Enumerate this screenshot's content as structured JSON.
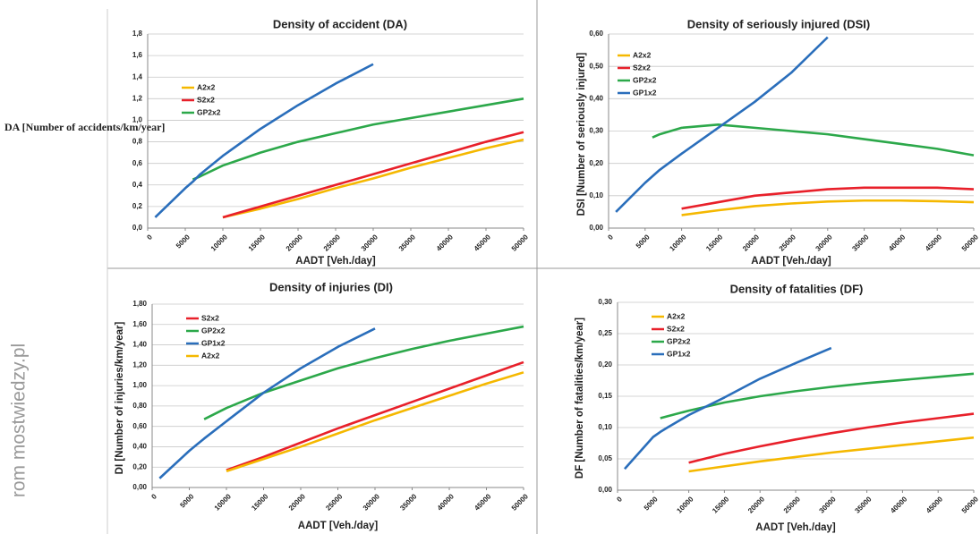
{
  "watermark": "rom mostwiedzy.pl",
  "chart_data": [
    {
      "type": "line",
      "title": "Density of accident (DA)",
      "x_label": "AADT [Veh./day]",
      "y_label": "DA [Number of accidents/km/year]",
      "x": [
        1000,
        5000,
        6000,
        7000,
        10000,
        15000,
        20000,
        25000,
        30000,
        35000,
        40000,
        45000,
        50000
      ],
      "xlim": [
        0,
        50000
      ],
      "xticks": [
        0,
        5000,
        10000,
        15000,
        20000,
        25000,
        30000,
        35000,
        40000,
        45000,
        50000
      ],
      "ylim": [
        0,
        1.8
      ],
      "yticks": [
        {
          "value": 0,
          "label": "0,0"
        },
        {
          "value": 0.2,
          "label": "0,2"
        },
        {
          "value": 0.4,
          "label": "0,4"
        },
        {
          "value": 0.6,
          "label": "0,6"
        },
        {
          "value": 0.8,
          "label": "0,8"
        },
        {
          "value": 1.0,
          "label": "1,0"
        },
        {
          "value": 1.2,
          "label": "1,2"
        },
        {
          "value": 1.4,
          "label": "1,4"
        },
        {
          "value": 1.6,
          "label": "1,6"
        },
        {
          "value": 1.8,
          "label": "1,8"
        }
      ],
      "grid": true,
      "legend": "upper left",
      "series": [
        {
          "name": "A2x2",
          "color": "#f5b800",
          "values": [
            null,
            null,
            null,
            null,
            0.1,
            0.18,
            0.27,
            0.37,
            0.46,
            0.56,
            0.65,
            0.74,
            0.82
          ]
        },
        {
          "name": "S2x2",
          "color": "#e8202a",
          "values": [
            null,
            null,
            null,
            null,
            0.1,
            0.2,
            0.3,
            0.4,
            0.5,
            0.6,
            0.7,
            0.8,
            0.89
          ]
        },
        {
          "name": "GP2x2",
          "color": "#2ca84a",
          "values": [
            null,
            null,
            0.45,
            0.48,
            0.58,
            0.7,
            0.8,
            0.88,
            0.96,
            1.02,
            1.08,
            1.14,
            1.2
          ]
        },
        {
          "color": "#2a6ebb",
          "values": [
            0.1,
            0.37,
            0.43,
            0.5,
            0.67,
            0.92,
            1.14,
            1.34,
            1.52,
            null,
            null,
            null,
            null
          ]
        }
      ]
    },
    {
      "type": "line",
      "title": "Density of seriously injured (DSI)",
      "x_label": "AADT [Veh./day]",
      "y_label": "DSI [Number of seriously injured]",
      "x": [
        1000,
        5000,
        6000,
        7000,
        10000,
        15000,
        20000,
        25000,
        30000,
        35000,
        40000,
        45000,
        50000
      ],
      "xlim": [
        0,
        50000
      ],
      "xticks": [
        0,
        5000,
        10000,
        15000,
        20000,
        25000,
        30000,
        35000,
        40000,
        45000,
        50000
      ],
      "ylim": [
        0,
        0.6
      ],
      "yticks": [
        {
          "value": 0,
          "label": "0,00"
        },
        {
          "value": 0.1,
          "label": "0,10"
        },
        {
          "value": 0.2,
          "label": "0,20"
        },
        {
          "value": 0.3,
          "label": "0,30"
        },
        {
          "value": 0.4,
          "label": "0,40"
        },
        {
          "value": 0.5,
          "label": "0,50"
        },
        {
          "value": 0.6,
          "label": "0,60"
        }
      ],
      "grid": true,
      "legend": "upper left",
      "series": [
        {
          "name": "A2x2",
          "color": "#f5b800",
          "values": [
            null,
            null,
            null,
            null,
            0.04,
            0.055,
            0.068,
            0.076,
            0.082,
            0.085,
            0.085,
            0.083,
            0.08
          ]
        },
        {
          "name": "S2x2",
          "color": "#e8202a",
          "values": [
            null,
            null,
            null,
            null,
            0.06,
            0.08,
            0.1,
            0.11,
            0.12,
            0.125,
            0.125,
            0.125,
            0.12
          ]
        },
        {
          "name": "GP2x2",
          "color": "#2ca84a",
          "values": [
            null,
            null,
            0.28,
            0.29,
            0.31,
            0.32,
            0.31,
            0.3,
            0.29,
            0.275,
            0.26,
            0.245,
            0.225
          ]
        },
        {
          "name": "GP1x2",
          "color": "#2a6ebb",
          "values": [
            0.05,
            0.14,
            0.16,
            0.18,
            0.23,
            0.31,
            0.39,
            0.48,
            0.59,
            null,
            null,
            null,
            null
          ]
        }
      ]
    },
    {
      "type": "line",
      "title": "Density of injuries (DI)",
      "x_label": "AADT [Veh./day]",
      "y_label": "DI [Number of injuries/km/year]",
      "x": [
        1000,
        5000,
        6000,
        7000,
        10000,
        15000,
        20000,
        25000,
        30000,
        35000,
        40000,
        45000,
        50000
      ],
      "xlim": [
        0,
        50000
      ],
      "xticks": [
        0,
        5000,
        10000,
        15000,
        20000,
        25000,
        30000,
        35000,
        40000,
        45000,
        50000
      ],
      "ylim": [
        0,
        1.8
      ],
      "yticks": [
        {
          "value": 0,
          "label": "0,00"
        },
        {
          "value": 0.2,
          "label": "0,20"
        },
        {
          "value": 0.4,
          "label": "0,40"
        },
        {
          "value": 0.6,
          "label": "0,60"
        },
        {
          "value": 0.8,
          "label": "0,80"
        },
        {
          "value": 1.0,
          "label": "1,00"
        },
        {
          "value": 1.2,
          "label": "1,20"
        },
        {
          "value": 1.4,
          "label": "1,40"
        },
        {
          "value": 1.6,
          "label": "1,60"
        },
        {
          "value": 1.8,
          "label": "1,80"
        }
      ],
      "grid": true,
      "legend": "upper left",
      "series": [
        {
          "name": "S2x2",
          "color": "#e8202a",
          "values": [
            null,
            null,
            null,
            null,
            0.17,
            0.3,
            0.44,
            0.58,
            0.71,
            0.84,
            0.97,
            1.1,
            1.23
          ]
        },
        {
          "name": "GP2x2",
          "color": "#2ca84a",
          "values": [
            null,
            null,
            null,
            0.67,
            0.78,
            0.93,
            1.05,
            1.17,
            1.27,
            1.36,
            1.44,
            1.51,
            1.58
          ]
        },
        {
          "name": "GP1x2",
          "color": "#2a6ebb",
          "values": [
            0.09,
            0.36,
            0.42,
            0.48,
            0.65,
            0.93,
            1.17,
            1.38,
            1.56,
            null,
            null,
            null,
            null
          ]
        },
        {
          "name": "A2x2",
          "color": "#f5b800",
          "values": [
            null,
            null,
            null,
            null,
            0.16,
            0.28,
            0.4,
            0.53,
            0.66,
            0.78,
            0.9,
            1.02,
            1.13
          ]
        }
      ]
    },
    {
      "type": "line",
      "title": "Density of fatalities (DF)",
      "x_label": "AADT [Veh./day]",
      "y_label": "DF [Number of fatalities/km/year]",
      "x": [
        1000,
        5000,
        6000,
        7000,
        10000,
        15000,
        20000,
        25000,
        30000,
        35000,
        40000,
        45000,
        50000
      ],
      "xlim": [
        0,
        50000
      ],
      "xticks": [
        0,
        5000,
        10000,
        15000,
        20000,
        25000,
        30000,
        35000,
        40000,
        45000,
        50000
      ],
      "ylim": [
        0,
        0.3
      ],
      "yticks": [
        {
          "value": 0,
          "label": "0,00"
        },
        {
          "value": 0.05,
          "label": "0,05"
        },
        {
          "value": 0.1,
          "label": "0,10"
        },
        {
          "value": 0.15,
          "label": "0,15"
        },
        {
          "value": 0.2,
          "label": "0,20"
        },
        {
          "value": 0.25,
          "label": "0,25"
        },
        {
          "value": 0.3,
          "label": "0,30"
        }
      ],
      "grid": true,
      "legend": "upper left",
      "series": [
        {
          "name": "A2x2",
          "color": "#f5b800",
          "values": [
            null,
            null,
            null,
            null,
            0.03,
            0.038,
            0.046,
            0.053,
            0.06,
            0.066,
            0.072,
            0.078,
            0.084
          ]
        },
        {
          "name": "S2x2",
          "color": "#e8202a",
          "values": [
            null,
            null,
            null,
            null,
            0.044,
            0.058,
            0.07,
            0.081,
            0.091,
            0.1,
            0.108,
            0.115,
            0.122
          ]
        },
        {
          "name": "GP2x2",
          "color": "#2ca84a",
          "values": [
            null,
            null,
            0.115,
            0.118,
            0.127,
            0.14,
            0.15,
            0.158,
            0.165,
            0.171,
            0.176,
            0.181,
            0.186
          ]
        },
        {
          "name": "GP1x2",
          "color": "#2a6ebb",
          "values": [
            0.034,
            0.085,
            0.093,
            0.1,
            0.12,
            0.148,
            0.178,
            0.203,
            0.227,
            null,
            null,
            null,
            null
          ]
        }
      ]
    }
  ]
}
